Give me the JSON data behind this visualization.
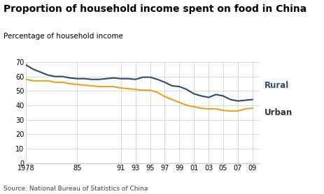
{
  "title": "Proportion of household income spent on food in China",
  "ylabel": "Percentage of household income",
  "source": "Source: National Bureau of Statistics of China",
  "rural_color": "#2e4a6b",
  "urban_color": "#e8a020",
  "background_color": "#ffffff",
  "grid_color": "#cccccc",
  "x_ticks": [
    1978,
    1985,
    1991,
    1993,
    1995,
    1997,
    1999,
    2001,
    2003,
    2005,
    2007,
    2009
  ],
  "x_tick_labels": [
    "1978",
    "85",
    "91",
    "93",
    "95",
    "97",
    "99",
    "01",
    "03",
    "05",
    "07",
    "09"
  ],
  "ylim": [
    0,
    70
  ],
  "yticks": [
    0,
    10,
    20,
    30,
    40,
    50,
    60,
    70
  ],
  "rural_x": [
    1978,
    1979,
    1980,
    1981,
    1982,
    1983,
    1984,
    1985,
    1986,
    1987,
    1988,
    1989,
    1990,
    1991,
    1992,
    1993,
    1994,
    1995,
    1996,
    1997,
    1998,
    1999,
    2000,
    2001,
    2002,
    2003,
    2004,
    2005,
    2006,
    2007,
    2008,
    2009
  ],
  "rural_y": [
    68,
    65,
    63,
    61,
    60,
    60,
    59,
    58.5,
    58.5,
    58,
    58,
    58.5,
    59,
    58.5,
    58.5,
    58,
    59.5,
    59.5,
    58,
    56,
    53.5,
    53,
    51,
    48,
    46.5,
    45.5,
    47.5,
    46.5,
    44,
    43,
    43.5,
    44
  ],
  "urban_x": [
    1978,
    1979,
    1980,
    1981,
    1982,
    1983,
    1984,
    1985,
    1986,
    1987,
    1988,
    1989,
    1990,
    1991,
    1992,
    1993,
    1994,
    1995,
    1996,
    1997,
    1998,
    1999,
    2000,
    2001,
    2002,
    2003,
    2004,
    2005,
    2006,
    2007,
    2008,
    2009
  ],
  "urban_y": [
    58,
    57,
    57,
    57,
    56,
    56,
    55,
    54.5,
    54,
    53.5,
    53,
    53,
    53,
    52,
    51.5,
    51,
    50.5,
    50.5,
    49,
    46,
    44,
    42,
    40,
    39,
    38,
    37.5,
    37.5,
    36.5,
    36,
    36,
    37.5,
    38
  ],
  "legend_labels": [
    "Rural",
    "Urban"
  ],
  "title_fontsize": 10,
  "subtitle_fontsize": 7.5,
  "tick_fontsize": 7,
  "legend_fontsize": 8.5,
  "source_fontsize": 6.5
}
